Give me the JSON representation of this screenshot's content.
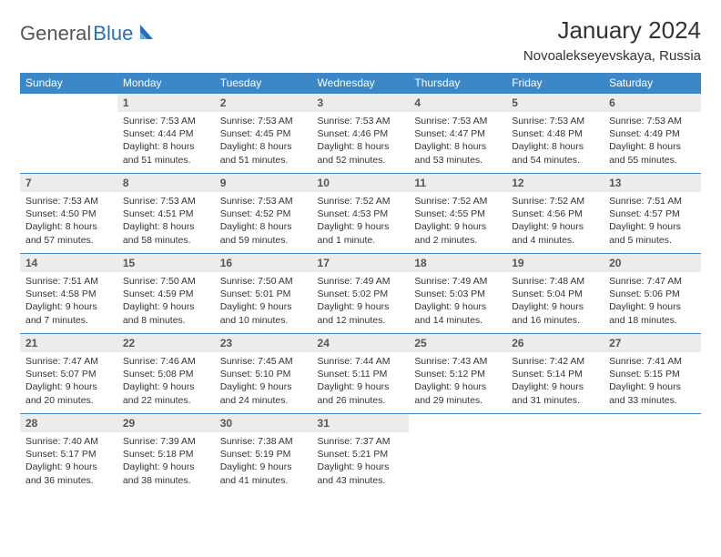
{
  "logo": {
    "part1": "General",
    "part2": "Blue"
  },
  "title": "January 2024",
  "location": "Novoalekseyevskaya, Russia",
  "day_headers": [
    "Sunday",
    "Monday",
    "Tuesday",
    "Wednesday",
    "Thursday",
    "Friday",
    "Saturday"
  ],
  "colors": {
    "header_bg": "#3b87c8",
    "header_text": "#ffffff",
    "daynum_bg": "#ececec",
    "border": "#3b87c8",
    "logo_blue": "#2a6db8",
    "text": "#333333"
  },
  "weeks": [
    [
      {
        "n": "",
        "lines": []
      },
      {
        "n": "1",
        "lines": [
          "Sunrise: 7:53 AM",
          "Sunset: 4:44 PM",
          "Daylight: 8 hours",
          "and 51 minutes."
        ]
      },
      {
        "n": "2",
        "lines": [
          "Sunrise: 7:53 AM",
          "Sunset: 4:45 PM",
          "Daylight: 8 hours",
          "and 51 minutes."
        ]
      },
      {
        "n": "3",
        "lines": [
          "Sunrise: 7:53 AM",
          "Sunset: 4:46 PM",
          "Daylight: 8 hours",
          "and 52 minutes."
        ]
      },
      {
        "n": "4",
        "lines": [
          "Sunrise: 7:53 AM",
          "Sunset: 4:47 PM",
          "Daylight: 8 hours",
          "and 53 minutes."
        ]
      },
      {
        "n": "5",
        "lines": [
          "Sunrise: 7:53 AM",
          "Sunset: 4:48 PM",
          "Daylight: 8 hours",
          "and 54 minutes."
        ]
      },
      {
        "n": "6",
        "lines": [
          "Sunrise: 7:53 AM",
          "Sunset: 4:49 PM",
          "Daylight: 8 hours",
          "and 55 minutes."
        ]
      }
    ],
    [
      {
        "n": "7",
        "lines": [
          "Sunrise: 7:53 AM",
          "Sunset: 4:50 PM",
          "Daylight: 8 hours",
          "and 57 minutes."
        ]
      },
      {
        "n": "8",
        "lines": [
          "Sunrise: 7:53 AM",
          "Sunset: 4:51 PM",
          "Daylight: 8 hours",
          "and 58 minutes."
        ]
      },
      {
        "n": "9",
        "lines": [
          "Sunrise: 7:53 AM",
          "Sunset: 4:52 PM",
          "Daylight: 8 hours",
          "and 59 minutes."
        ]
      },
      {
        "n": "10",
        "lines": [
          "Sunrise: 7:52 AM",
          "Sunset: 4:53 PM",
          "Daylight: 9 hours",
          "and 1 minute."
        ]
      },
      {
        "n": "11",
        "lines": [
          "Sunrise: 7:52 AM",
          "Sunset: 4:55 PM",
          "Daylight: 9 hours",
          "and 2 minutes."
        ]
      },
      {
        "n": "12",
        "lines": [
          "Sunrise: 7:52 AM",
          "Sunset: 4:56 PM",
          "Daylight: 9 hours",
          "and 4 minutes."
        ]
      },
      {
        "n": "13",
        "lines": [
          "Sunrise: 7:51 AM",
          "Sunset: 4:57 PM",
          "Daylight: 9 hours",
          "and 5 minutes."
        ]
      }
    ],
    [
      {
        "n": "14",
        "lines": [
          "Sunrise: 7:51 AM",
          "Sunset: 4:58 PM",
          "Daylight: 9 hours",
          "and 7 minutes."
        ]
      },
      {
        "n": "15",
        "lines": [
          "Sunrise: 7:50 AM",
          "Sunset: 4:59 PM",
          "Daylight: 9 hours",
          "and 8 minutes."
        ]
      },
      {
        "n": "16",
        "lines": [
          "Sunrise: 7:50 AM",
          "Sunset: 5:01 PM",
          "Daylight: 9 hours",
          "and 10 minutes."
        ]
      },
      {
        "n": "17",
        "lines": [
          "Sunrise: 7:49 AM",
          "Sunset: 5:02 PM",
          "Daylight: 9 hours",
          "and 12 minutes."
        ]
      },
      {
        "n": "18",
        "lines": [
          "Sunrise: 7:49 AM",
          "Sunset: 5:03 PM",
          "Daylight: 9 hours",
          "and 14 minutes."
        ]
      },
      {
        "n": "19",
        "lines": [
          "Sunrise: 7:48 AM",
          "Sunset: 5:04 PM",
          "Daylight: 9 hours",
          "and 16 minutes."
        ]
      },
      {
        "n": "20",
        "lines": [
          "Sunrise: 7:47 AM",
          "Sunset: 5:06 PM",
          "Daylight: 9 hours",
          "and 18 minutes."
        ]
      }
    ],
    [
      {
        "n": "21",
        "lines": [
          "Sunrise: 7:47 AM",
          "Sunset: 5:07 PM",
          "Daylight: 9 hours",
          "and 20 minutes."
        ]
      },
      {
        "n": "22",
        "lines": [
          "Sunrise: 7:46 AM",
          "Sunset: 5:08 PM",
          "Daylight: 9 hours",
          "and 22 minutes."
        ]
      },
      {
        "n": "23",
        "lines": [
          "Sunrise: 7:45 AM",
          "Sunset: 5:10 PM",
          "Daylight: 9 hours",
          "and 24 minutes."
        ]
      },
      {
        "n": "24",
        "lines": [
          "Sunrise: 7:44 AM",
          "Sunset: 5:11 PM",
          "Daylight: 9 hours",
          "and 26 minutes."
        ]
      },
      {
        "n": "25",
        "lines": [
          "Sunrise: 7:43 AM",
          "Sunset: 5:12 PM",
          "Daylight: 9 hours",
          "and 29 minutes."
        ]
      },
      {
        "n": "26",
        "lines": [
          "Sunrise: 7:42 AM",
          "Sunset: 5:14 PM",
          "Daylight: 9 hours",
          "and 31 minutes."
        ]
      },
      {
        "n": "27",
        "lines": [
          "Sunrise: 7:41 AM",
          "Sunset: 5:15 PM",
          "Daylight: 9 hours",
          "and 33 minutes."
        ]
      }
    ],
    [
      {
        "n": "28",
        "lines": [
          "Sunrise: 7:40 AM",
          "Sunset: 5:17 PM",
          "Daylight: 9 hours",
          "and 36 minutes."
        ]
      },
      {
        "n": "29",
        "lines": [
          "Sunrise: 7:39 AM",
          "Sunset: 5:18 PM",
          "Daylight: 9 hours",
          "and 38 minutes."
        ]
      },
      {
        "n": "30",
        "lines": [
          "Sunrise: 7:38 AM",
          "Sunset: 5:19 PM",
          "Daylight: 9 hours",
          "and 41 minutes."
        ]
      },
      {
        "n": "31",
        "lines": [
          "Sunrise: 7:37 AM",
          "Sunset: 5:21 PM",
          "Daylight: 9 hours",
          "and 43 minutes."
        ]
      },
      {
        "n": "",
        "lines": []
      },
      {
        "n": "",
        "lines": []
      },
      {
        "n": "",
        "lines": []
      }
    ]
  ]
}
